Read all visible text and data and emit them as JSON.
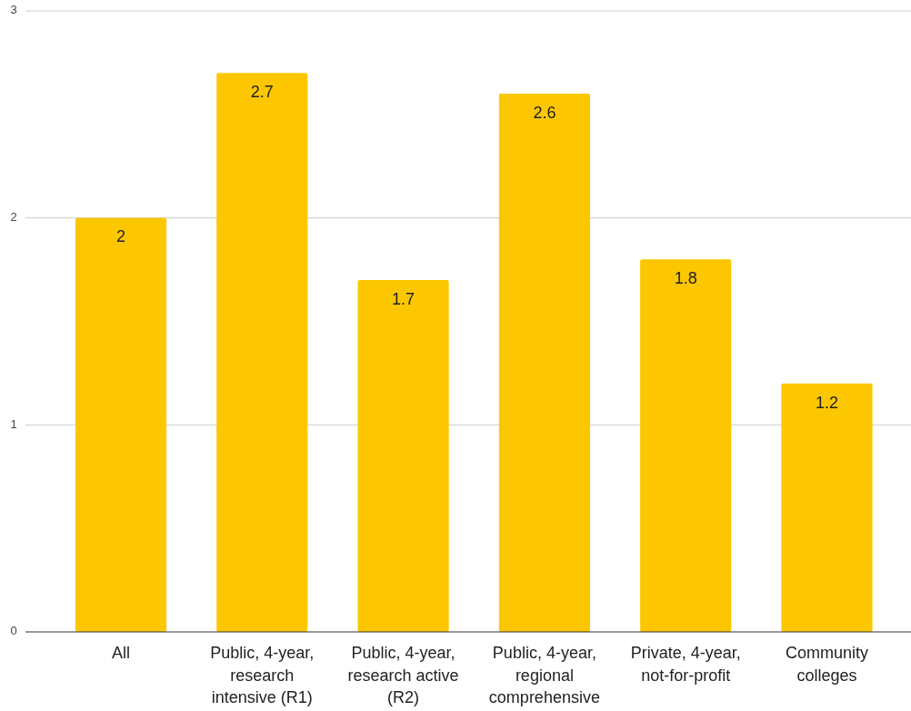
{
  "chart_data": {
    "type": "bar",
    "categories": [
      "All",
      "Public, 4-year, research intensive (R1)",
      "Public, 4-year, research active (R2)",
      "Public, 4-year, regional comprehensive",
      "Private, 4-year, not-for-profit",
      "Community colleges"
    ],
    "values": [
      2,
      2.7,
      1.7,
      2.6,
      1.8,
      1.2
    ],
    "color": "#fcc700",
    "ylim": [
      0,
      3
    ],
    "yticks": [
      0,
      1,
      2,
      3
    ],
    "grid": "y",
    "data_labels": true
  }
}
